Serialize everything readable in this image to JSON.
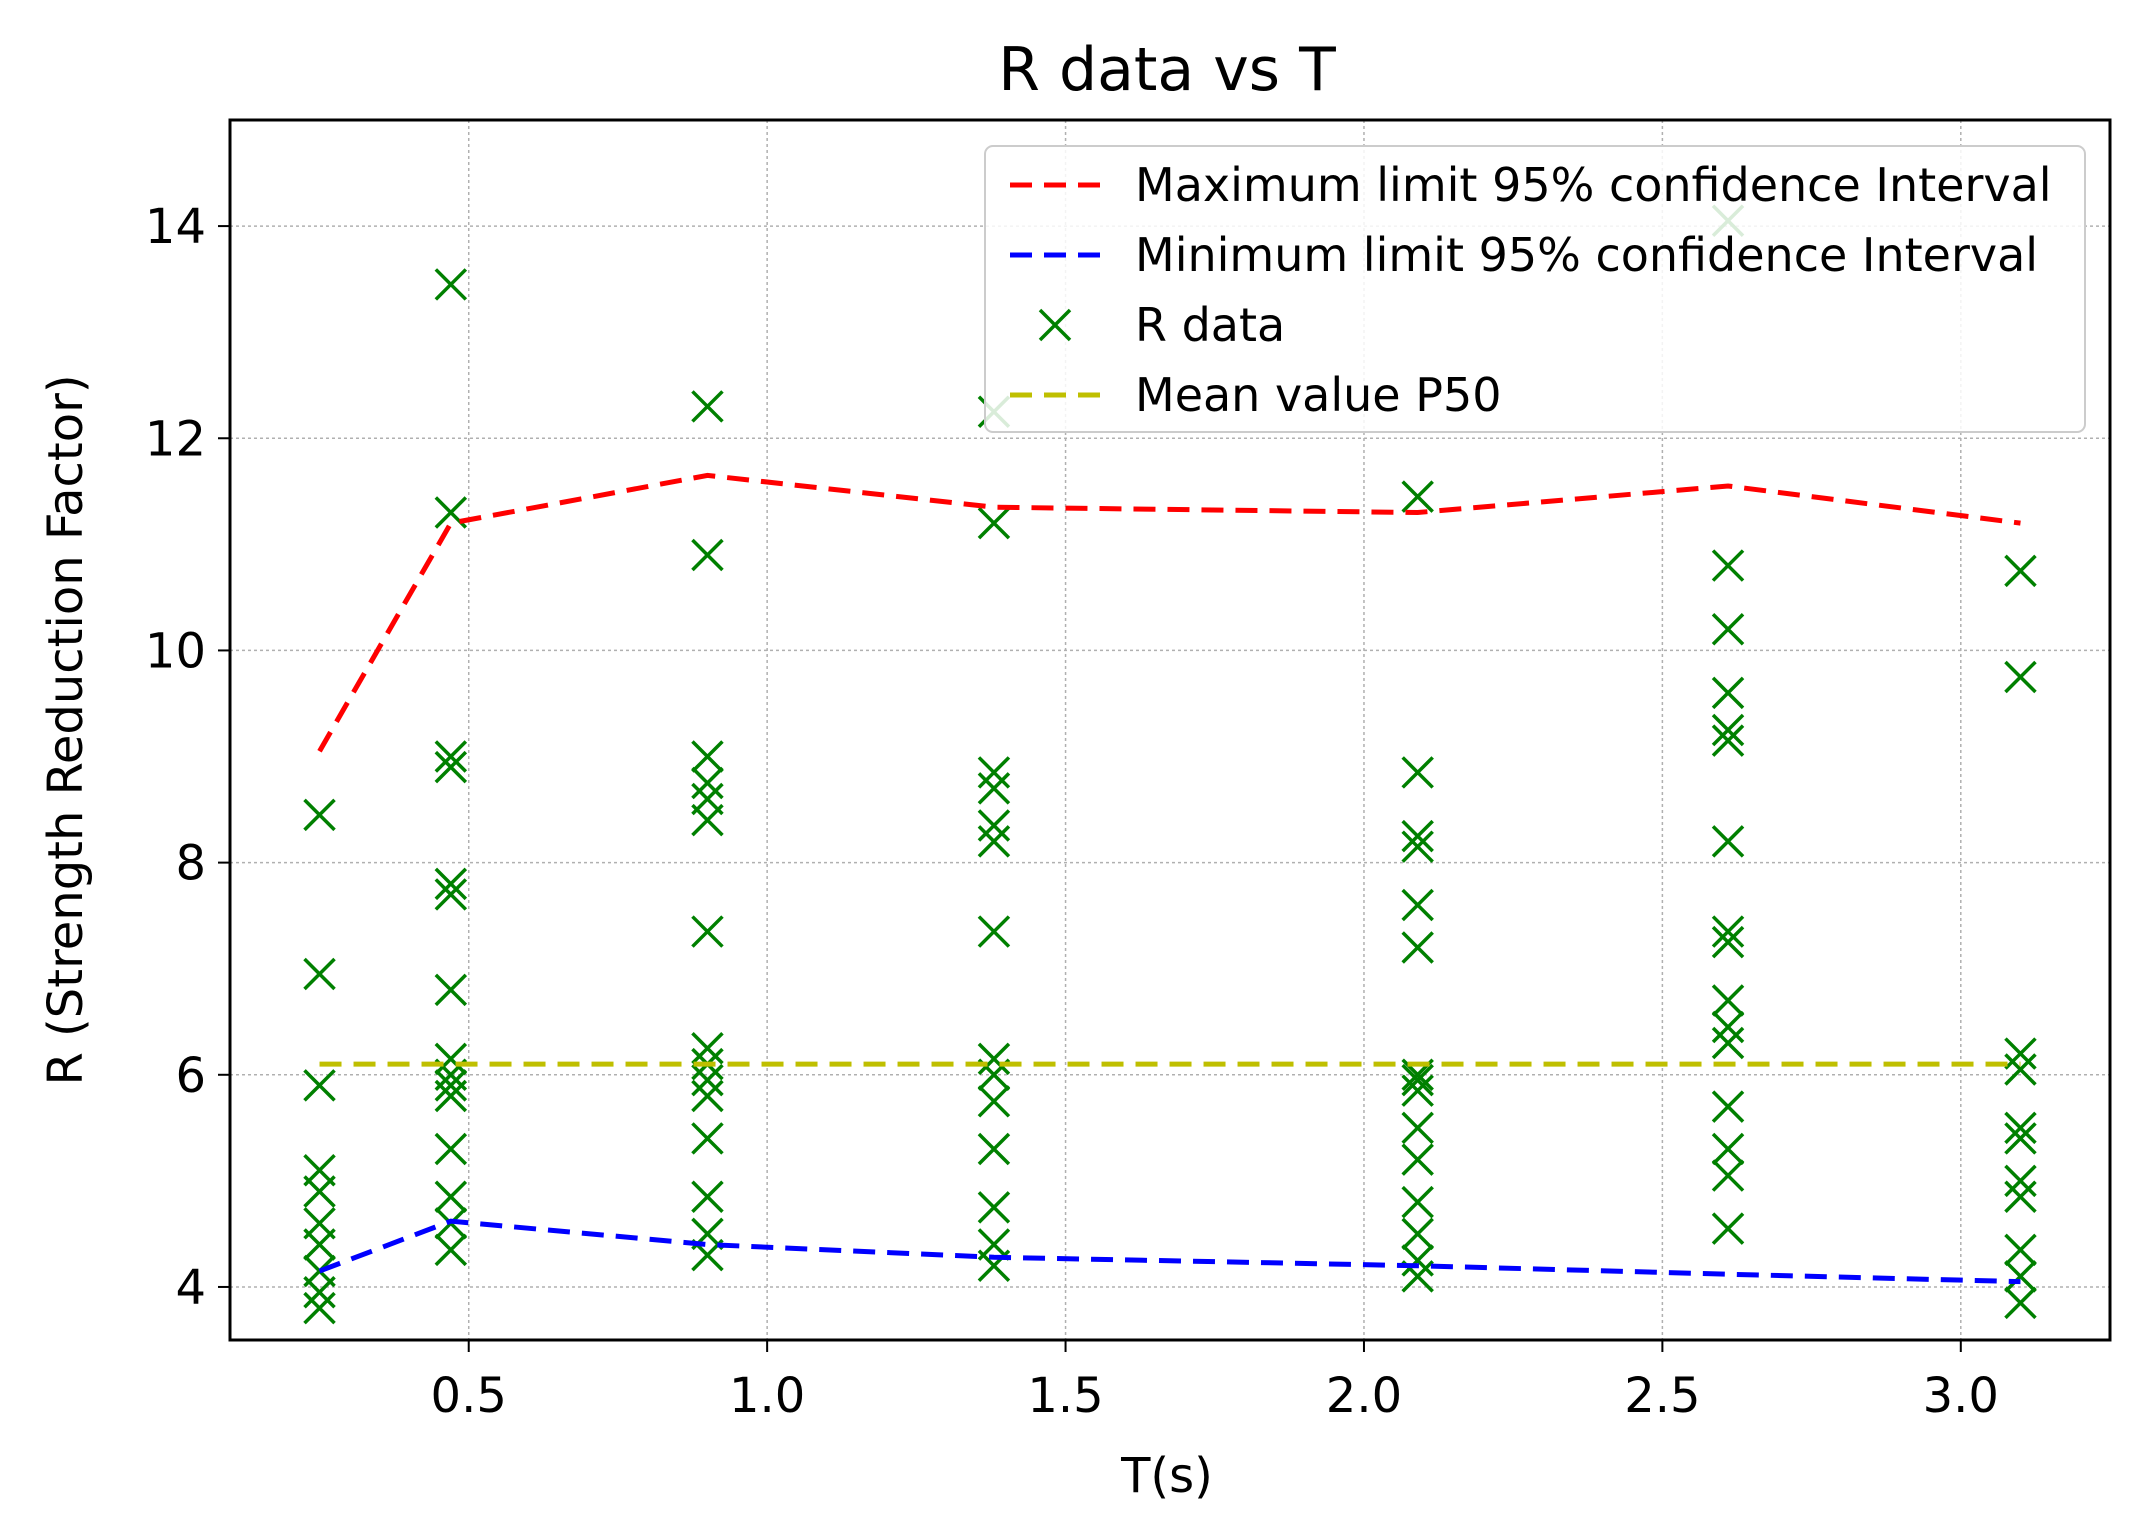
{
  "chart_data": {
    "type": "line+scatter",
    "title": "R data vs T",
    "xlabel": "T(s)",
    "ylabel": "R (Strength Reduction Factor)",
    "xlim": [
      0.1,
      3.25
    ],
    "ylim": [
      3.5,
      15.0
    ],
    "xticks": [
      0.5,
      1.0,
      1.5,
      2.0,
      2.5,
      3.0
    ],
    "xtick_labels": [
      "0.5",
      "1.0",
      "1.5",
      "2.0",
      "2.5",
      "3.0"
    ],
    "yticks": [
      4,
      6,
      8,
      10,
      12,
      14
    ],
    "ytick_labels": [
      "4",
      "6",
      "8",
      "10",
      "12",
      "14"
    ],
    "grid": true,
    "legend_position": "top-right",
    "colors": {
      "max": "#ff0000",
      "min": "#0000ff",
      "data": "#008000",
      "mean": "#bfbf00"
    },
    "series": [
      {
        "name": "Maximum limit 95% confidence Interval",
        "kind": "line",
        "style": "dashed",
        "color_key": "max",
        "x": [
          0.25,
          0.47,
          0.9,
          1.38,
          2.09,
          2.61,
          3.1
        ],
        "y": [
          9.05,
          11.2,
          11.65,
          11.35,
          11.3,
          11.55,
          11.2
        ]
      },
      {
        "name": "Minimum limit 95% confidence Interval",
        "kind": "line",
        "style": "dashed",
        "color_key": "min",
        "x": [
          0.25,
          0.47,
          0.9,
          1.38,
          2.09,
          2.61,
          3.1
        ],
        "y": [
          4.15,
          4.62,
          4.4,
          4.28,
          4.2,
          4.12,
          4.05
        ]
      },
      {
        "name": "R data",
        "kind": "scatter",
        "marker": "x",
        "color_key": "data",
        "groups": [
          {
            "x": 0.25,
            "y": [
              8.45,
              6.95,
              5.9,
              5.1,
              4.9,
              4.6,
              4.4,
              4.15,
              3.95,
              3.8
            ]
          },
          {
            "x": 0.47,
            "y": [
              13.45,
              11.3,
              9.0,
              8.9,
              7.8,
              7.7,
              6.8,
              6.15,
              6.0,
              5.9,
              5.8,
              5.3,
              4.85,
              4.6,
              4.35
            ]
          },
          {
            "x": 0.9,
            "y": [
              12.3,
              10.9,
              9.0,
              8.75,
              8.6,
              8.4,
              7.35,
              6.25,
              6.1,
              5.95,
              5.8,
              5.4,
              4.85,
              4.5,
              4.3
            ]
          },
          {
            "x": 1.38,
            "y": [
              12.25,
              11.2,
              8.85,
              8.7,
              8.35,
              8.2,
              7.35,
              6.15,
              6.0,
              5.75,
              5.3,
              4.75,
              4.4,
              4.2
            ]
          },
          {
            "x": 2.09,
            "y": [
              11.45,
              8.85,
              8.25,
              8.15,
              7.6,
              7.2,
              6.0,
              5.95,
              5.85,
              5.5,
              5.2,
              4.8,
              4.5,
              4.25,
              4.1
            ]
          },
          {
            "x": 2.61,
            "y": [
              14.05,
              10.8,
              10.2,
              9.6,
              9.25,
              9.15,
              8.2,
              7.35,
              7.25,
              6.7,
              6.45,
              6.3,
              5.7,
              5.3,
              5.05,
              4.55
            ]
          },
          {
            "x": 3.1,
            "y": [
              10.75,
              9.75,
              6.2,
              6.05,
              5.5,
              5.4,
              5.0,
              4.85,
              4.35,
              4.1,
              3.85
            ]
          }
        ]
      },
      {
        "name": "Mean value P50",
        "kind": "line",
        "style": "dashed",
        "color_key": "mean",
        "x": [
          0.25,
          3.1
        ],
        "y": [
          6.1,
          6.1
        ]
      }
    ]
  }
}
